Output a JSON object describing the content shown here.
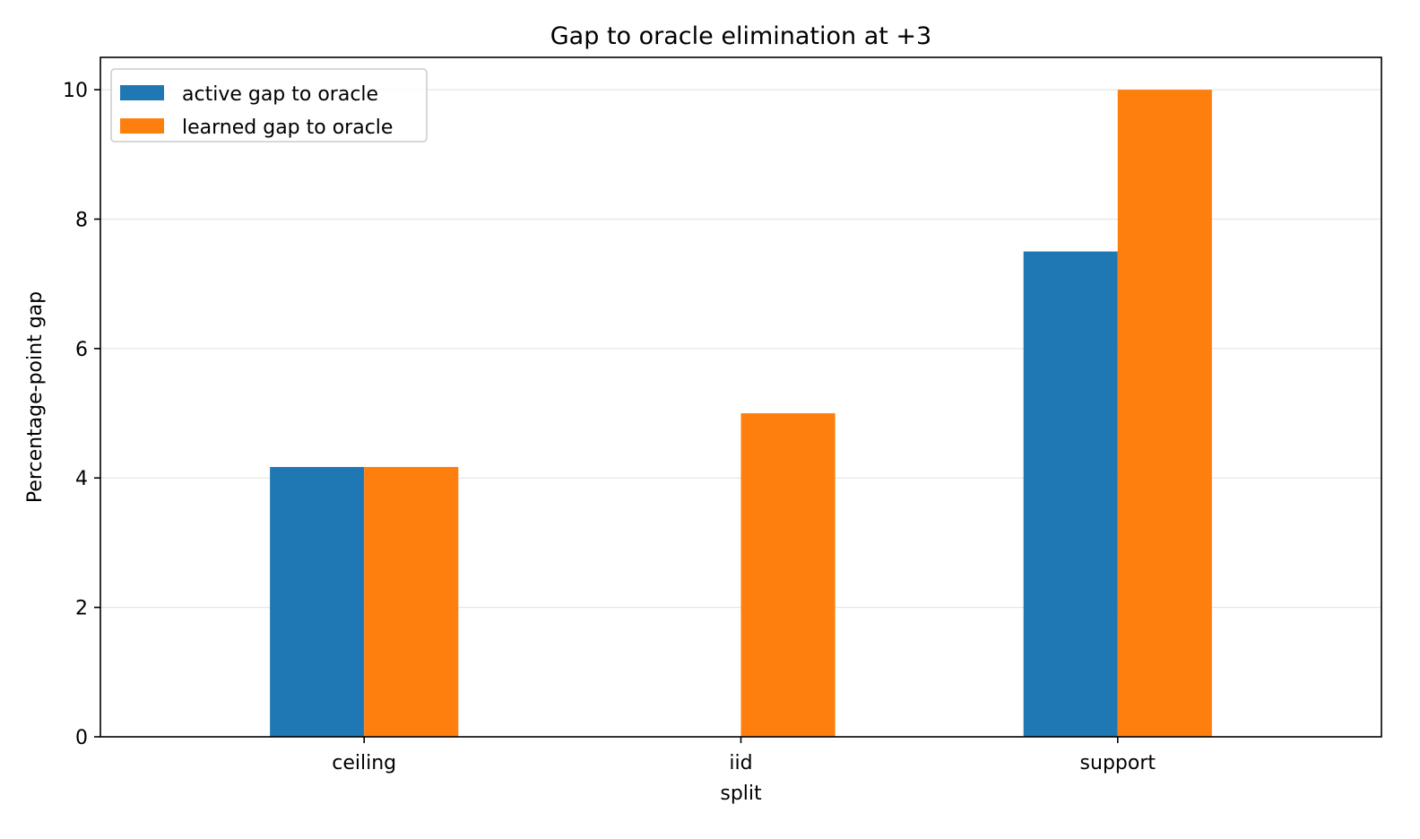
{
  "chart_data": {
    "type": "bar",
    "title": "Gap to oracle elimination at +3",
    "xlabel": "split",
    "ylabel": "Percentage-point gap",
    "categories": [
      "ceiling",
      "iid",
      "support"
    ],
    "series": [
      {
        "name": "active gap to oracle",
        "color": "#1f77b4",
        "values": [
          4.17,
          0,
          7.5
        ]
      },
      {
        "name": "learned gap to oracle",
        "color": "#ff7f0e",
        "values": [
          4.17,
          5.0,
          10.0
        ]
      }
    ],
    "ylim": [
      0,
      10.5
    ],
    "yticks": [
      0,
      2,
      4,
      6,
      8,
      10
    ],
    "grid": "y",
    "legend": "top-left"
  }
}
